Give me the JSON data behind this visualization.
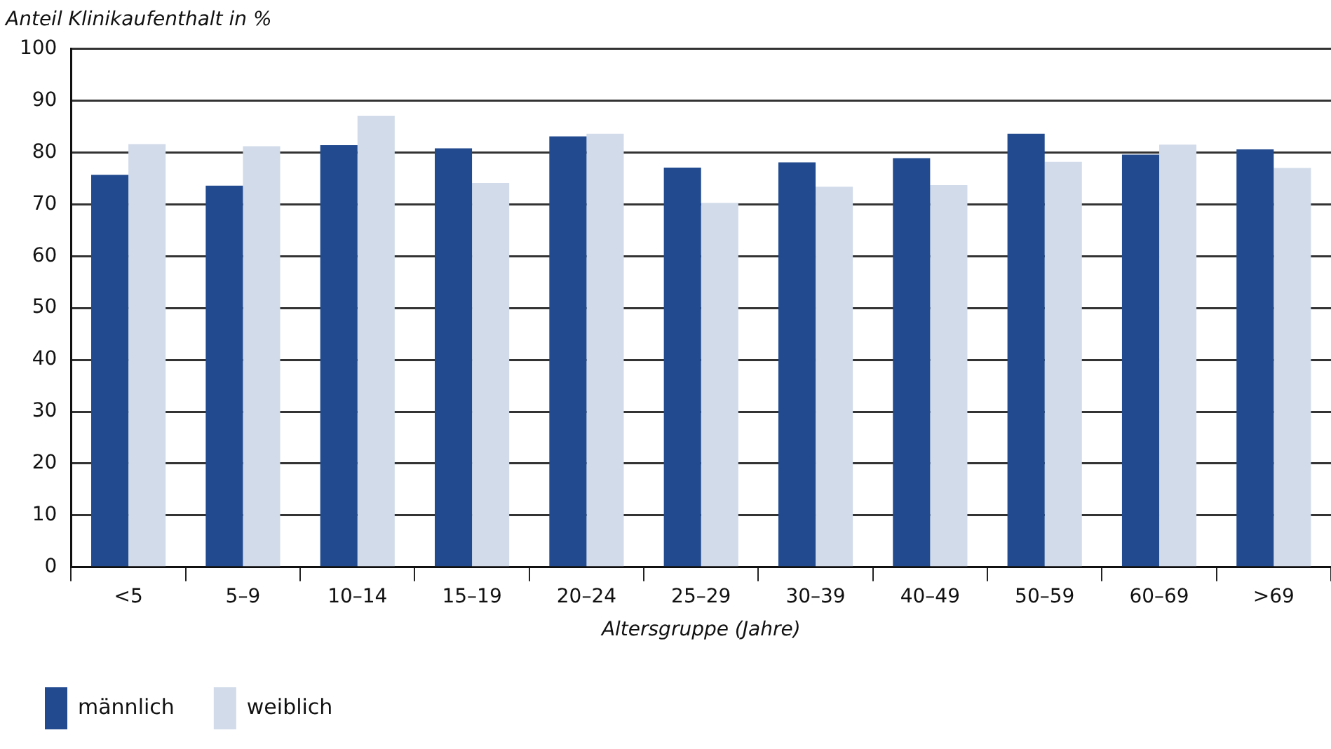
{
  "chart_data": {
    "type": "bar",
    "ylabel": "Anteil Klinikaufenthalt in %",
    "xlabel": "Altersgruppe (Jahre)",
    "categories": [
      "<5",
      "5–9",
      "10–14",
      "15–19",
      "20–24",
      "25–29",
      "30–39",
      "40–49",
      "50–59",
      "60–69",
      ">69"
    ],
    "series": [
      {
        "name": "männlich",
        "color": "#214a8f",
        "values": [
          75.7,
          73.6,
          81.4,
          80.8,
          83.1,
          77.1,
          78.1,
          78.9,
          83.6,
          79.6,
          80.6
        ]
      },
      {
        "name": "weiblich",
        "color": "#d1dbe9",
        "values": [
          81.6,
          81.2,
          87.1,
          74.1,
          83.6,
          70.3,
          73.4,
          73.7,
          78.2,
          81.5,
          77.0
        ]
      }
    ],
    "ylim": [
      0,
      100
    ],
    "yticks": [
      0,
      10,
      20,
      30,
      40,
      50,
      60,
      70,
      80,
      90,
      100
    ],
    "grid": "y",
    "legend": "bottom left"
  }
}
